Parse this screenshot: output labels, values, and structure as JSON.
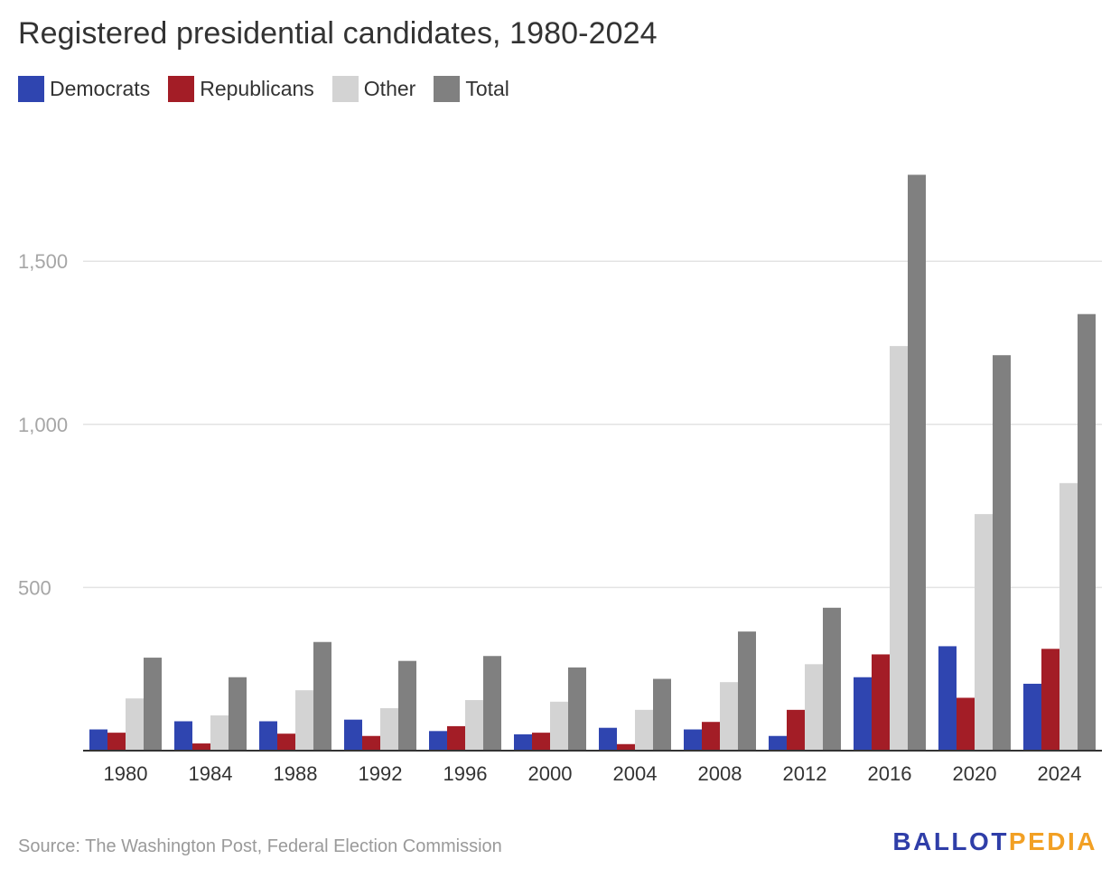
{
  "title": "Registered presidential candidates, 1980-2024",
  "source": "Source: The Washington Post, Federal Election Commission",
  "logo": {
    "part1": "BALLOT",
    "part2": "PEDIA"
  },
  "colors": {
    "democrats": "#2f45b0",
    "republicans": "#a31d26",
    "other": "#d3d3d3",
    "total": "#808080",
    "grid": "#e3e3e3",
    "axis": "#333333"
  },
  "chart_data": {
    "type": "bar",
    "title": "Registered presidential candidates, 1980-2024",
    "xlabel": "",
    "ylabel": "",
    "ylim": [
      0,
      1780
    ],
    "yticks": [
      500,
      1000,
      1500
    ],
    "ytick_labels": [
      "500",
      "1,000",
      "1,500"
    ],
    "grid": true,
    "legend": "top-left",
    "categories": [
      "1980",
      "1984",
      "1988",
      "1992",
      "1996",
      "2000",
      "2004",
      "2008",
      "2012",
      "2016",
      "2020",
      "2024"
    ],
    "series": [
      {
        "name": "Democrats",
        "values": [
          65,
          90,
          90,
          95,
          60,
          50,
          70,
          65,
          45,
          225,
          320,
          205
        ]
      },
      {
        "name": "Republicans",
        "values": [
          55,
          22,
          52,
          45,
          75,
          55,
          20,
          88,
          125,
          295,
          162,
          312
        ]
      },
      {
        "name": "Other",
        "values": [
          160,
          108,
          185,
          130,
          155,
          150,
          125,
          210,
          265,
          1240,
          725,
          820
        ]
      },
      {
        "name": "Total",
        "values": [
          285,
          225,
          333,
          275,
          290,
          255,
          220,
          365,
          438,
          1765,
          1212,
          1338
        ]
      }
    ]
  }
}
